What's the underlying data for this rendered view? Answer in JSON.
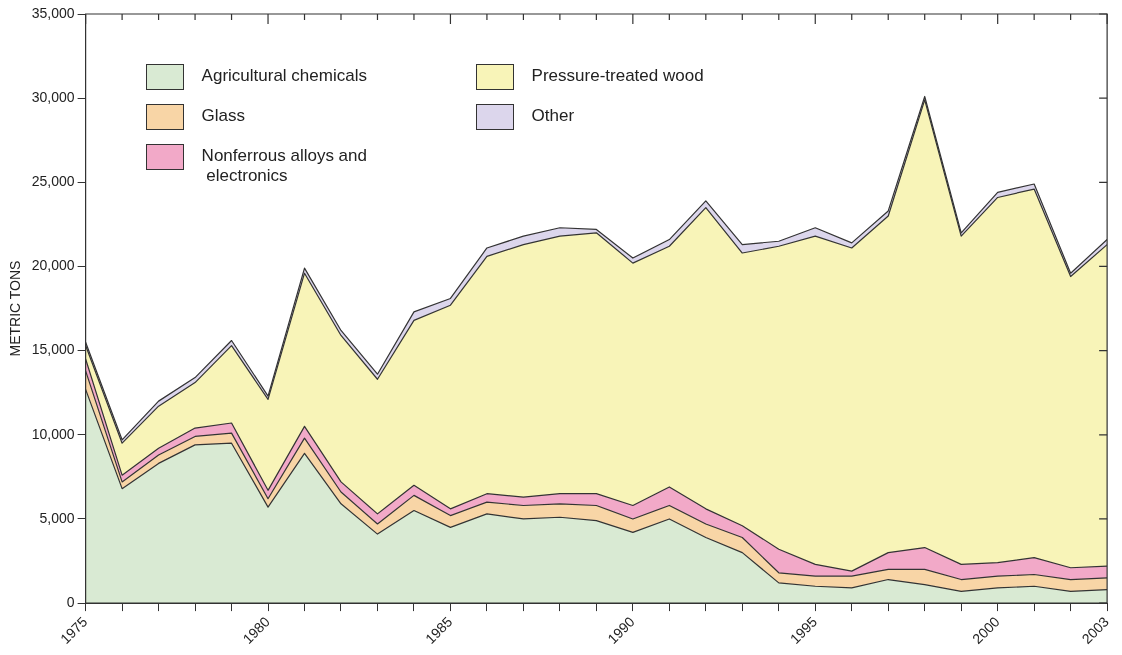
{
  "chart_data": {
    "type": "area",
    "stacked": true,
    "ylabel": "METRIC TONS",
    "legend": "top left",
    "grid": false,
    "x": [
      1975,
      1976,
      1977,
      1978,
      1979,
      1980,
      1981,
      1982,
      1983,
      1984,
      1985,
      1986,
      1987,
      1988,
      1989,
      1990,
      1991,
      1992,
      1993,
      1994,
      1995,
      1996,
      1997,
      1998,
      1999,
      2000,
      2001,
      2002,
      2003
    ],
    "xlim": [
      1975,
      2003
    ],
    "xticks": [
      1975,
      {
        "value": 1976,
        "label": null
      },
      {
        "value": 1977,
        "label": null
      },
      {
        "value": 1978,
        "label": null
      },
      {
        "value": 1979,
        "label": null
      },
      1980,
      {
        "value": 1981,
        "label": null
      },
      {
        "value": 1982,
        "label": null
      },
      {
        "value": 1983,
        "label": null
      },
      {
        "value": 1984,
        "label": null
      },
      1985,
      {
        "value": 1986,
        "label": null
      },
      {
        "value": 1987,
        "label": null
      },
      {
        "value": 1988,
        "label": null
      },
      {
        "value": 1989,
        "label": null
      },
      1990,
      {
        "value": 1991,
        "label": null
      },
      {
        "value": 1992,
        "label": null
      },
      {
        "value": 1993,
        "label": null
      },
      {
        "value": 1994,
        "label": null
      },
      1995,
      {
        "value": 1996,
        "label": null
      },
      {
        "value": 1997,
        "label": null
      },
      {
        "value": 1998,
        "label": null
      },
      {
        "value": 1999,
        "label": null
      },
      2000,
      {
        "value": 2001,
        "label": null
      },
      {
        "value": 2002,
        "label": null
      },
      2003
    ],
    "ylim": [
      0,
      35000
    ],
    "yticks": [
      0,
      {
        "value": 5000,
        "label": "5,000"
      },
      {
        "value": 10000,
        "label": "10,000"
      },
      {
        "value": 15000,
        "label": "15,000"
      },
      {
        "value": 20000,
        "label": "20,000"
      },
      {
        "value": 25000,
        "label": "25,000"
      },
      {
        "value": 30000,
        "label": "30,000"
      },
      {
        "value": 35000,
        "label": "35,000"
      }
    ],
    "series": [
      {
        "name": "Agricultural chemicals",
        "color": "#d9ead3",
        "values": [
          12700,
          6800,
          8300,
          9400,
          9500,
          5700,
          8900,
          5900,
          4100,
          5500,
          4500,
          5300,
          5000,
          5100,
          4900,
          4200,
          5000,
          3900,
          3000,
          1200,
          1000,
          900,
          1400,
          1100,
          700,
          900,
          1000,
          700,
          800
        ]
      },
      {
        "name": "Glass",
        "color": "#f8d5a6",
        "values": [
          1100,
          400,
          500,
          500,
          600,
          500,
          900,
          700,
          600,
          900,
          700,
          700,
          800,
          800,
          900,
          800,
          800,
          800,
          900,
          600,
          600,
          700,
          600,
          900,
          700,
          700,
          700,
          700,
          700
        ]
      },
      {
        "name": "Nonferrous alloys and\n electronics",
        "color": "#f2a9c8",
        "values": [
          700,
          400,
          400,
          500,
          600,
          500,
          700,
          600,
          600,
          600,
          400,
          500,
          500,
          600,
          700,
          800,
          1100,
          900,
          700,
          1400,
          700,
          300,
          1000,
          1300,
          900,
          800,
          1000,
          700,
          700
        ]
      },
      {
        "name": "Pressure-treated wood",
        "color": "#f8f4b8",
        "values": [
          800,
          1900,
          2500,
          2700,
          4600,
          5400,
          9100,
          8700,
          8000,
          9800,
          12100,
          14100,
          15000,
          15300,
          15500,
          14400,
          14300,
          17900,
          16200,
          18000,
          19500,
          19200,
          20000,
          26600,
          19500,
          21700,
          21900,
          17300,
          19100
        ]
      },
      {
        "name": "Other",
        "color": "#dcd6ec",
        "values": [
          200,
          200,
          300,
          300,
          300,
          200,
          300,
          300,
          300,
          500,
          400,
          500,
          500,
          500,
          200,
          300,
          400,
          400,
          500,
          300,
          500,
          300,
          300,
          200,
          200,
          300,
          300,
          200,
          300
        ]
      }
    ]
  }
}
